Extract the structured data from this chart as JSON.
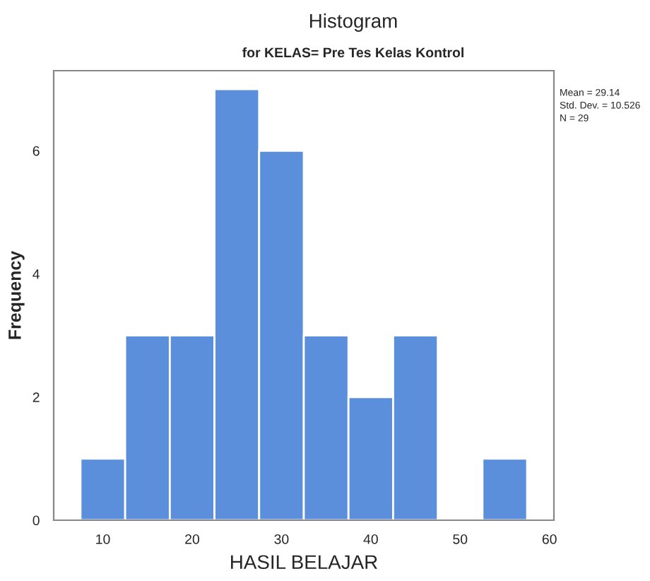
{
  "chart_data": {
    "type": "histogram",
    "title": "Histogram",
    "subtitle": "for KELAS= Pre Tes Kelas Kontrol",
    "xlabel": "HASIL BELAJAR",
    "ylabel": "Frequency",
    "bins": [
      7.5,
      12.5,
      17.5,
      22.5,
      27.5,
      32.5,
      37.5,
      42.5,
      47.5,
      52.5,
      57.5
    ],
    "values": [
      1,
      3,
      3,
      7,
      6,
      3,
      2,
      3,
      0,
      1
    ],
    "color": "#5b8fdb",
    "xlim": [
      4.5,
      60.5
    ],
    "xticks": [
      10,
      20,
      30,
      40,
      50,
      60
    ],
    "ylim": [
      0,
      7.3
    ],
    "yticks": [
      0,
      2,
      4,
      6
    ],
    "annotations": [
      "Mean = 29.14",
      "Std. Dev. = 10.526",
      "N = 29"
    ],
    "grid": false,
    "legend": false
  }
}
